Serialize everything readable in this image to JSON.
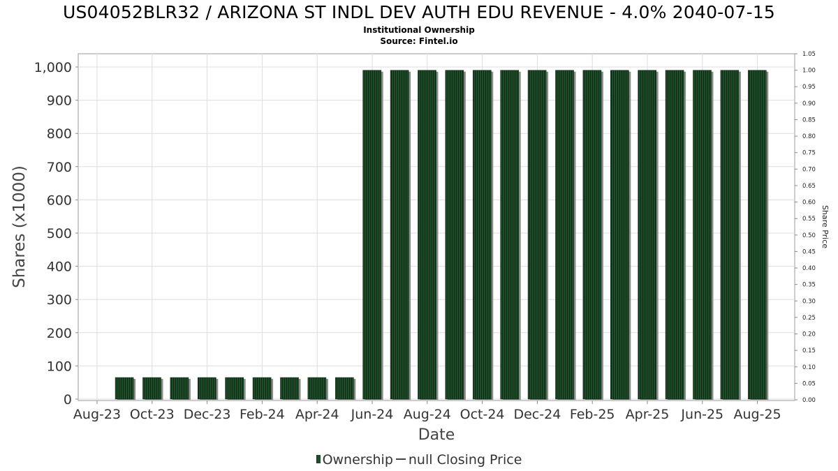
{
  "chart": {
    "title": "US04052BLR32 / ARIZONA ST INDL DEV AUTH EDU REVENUE - 4.0% 2040-07-15",
    "subtitle": "Institutional Ownership",
    "source": "Source: Fintel.io",
    "legend": {
      "ownership_label": "Ownership",
      "price_label": "null Closing Price"
    },
    "colors": {
      "bar": "#1f4d2a",
      "bar_stripe": "#0e2a14",
      "shadow": "#8a8a8a",
      "grid": "#dddddd"
    }
  },
  "chart_data": {
    "type": "bar",
    "title": "US04052BLR32 / ARIZONA ST INDL DEV AUTH EDU REVENUE - 4.0% 2040-07-15",
    "xlabel": "Date",
    "ylabel": "Shares (x1000)",
    "y2label": "Share Price",
    "ylim": [
      0,
      1000
    ],
    "y2lim": [
      0,
      1.05
    ],
    "yticks": [
      "0",
      "100",
      "200",
      "300",
      "400",
      "500",
      "600",
      "700",
      "800",
      "900",
      "1,000"
    ],
    "y2ticks": [
      "0.00",
      "0.05",
      "0.10",
      "0.15",
      "0.20",
      "0.25",
      "0.30",
      "0.35",
      "0.40",
      "0.45",
      "0.50",
      "0.55",
      "0.60",
      "0.65",
      "0.70",
      "0.75",
      "0.80",
      "0.85",
      "0.90",
      "0.95",
      "1.00",
      "1.05"
    ],
    "xticks": [
      "Aug-23",
      "Oct-23",
      "Dec-23",
      "Feb-24",
      "Apr-24",
      "Jun-24",
      "Aug-24",
      "Oct-24",
      "Dec-24",
      "Feb-25",
      "Apr-25",
      "Jun-25",
      "Aug-25"
    ],
    "grid": true,
    "legend_position": "bottom",
    "series": [
      {
        "name": "Ownership",
        "values": [
          65,
          65,
          65,
          65,
          65,
          65,
          65,
          65,
          65,
          990,
          990,
          990,
          990,
          990,
          990,
          990,
          990,
          990,
          990,
          990,
          990,
          990,
          990,
          990
        ]
      }
    ]
  }
}
